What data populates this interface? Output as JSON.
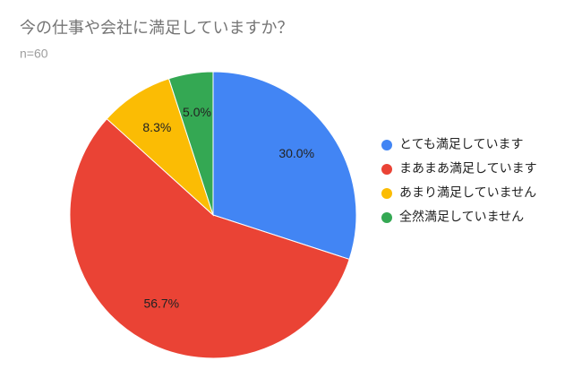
{
  "chart_data": {
    "type": "pie",
    "title": "今の仕事や会社に満足していますか？",
    "subtitle": "n=60",
    "categories": [
      "とても満足しています",
      "まあまあ満足しています",
      "あまり満足していません",
      "全然満足していません"
    ],
    "values": [
      30.0,
      56.7,
      8.3,
      5.0
    ],
    "value_labels": [
      "30.0%",
      "56.7%",
      "8.3%",
      "5.0%"
    ],
    "colors": [
      "#4285f4",
      "#ea4335",
      "#fbbc04",
      "#34a853"
    ],
    "legend": "right"
  }
}
